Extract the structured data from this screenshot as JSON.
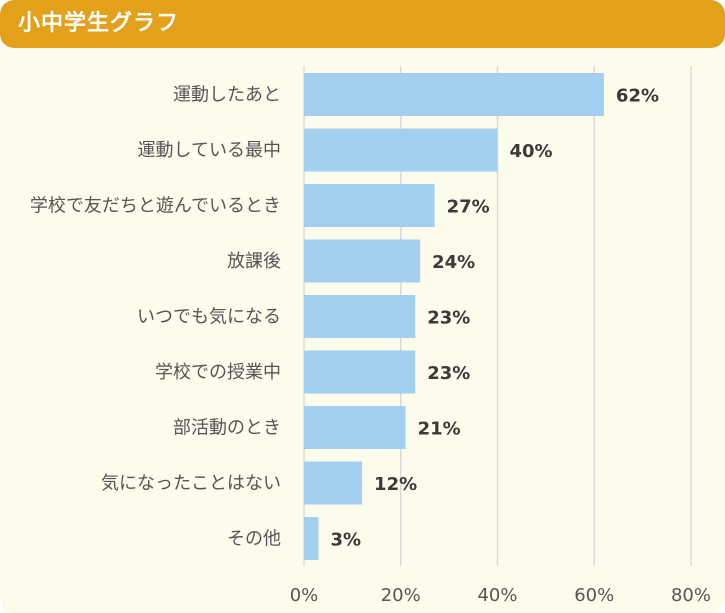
{
  "header": {
    "title": "小中学生グラフ"
  },
  "colors": {
    "header_bg": "#e3a11b",
    "card_bg": "#fdfbeb",
    "bar": "#a3d0f1",
    "gridline": "#d9d9d9"
  },
  "chart_data": {
    "type": "bar",
    "orientation": "horizontal",
    "categories": [
      "運動したあと",
      "運動している最中",
      "学校で友だちと遊んでいるとき",
      "放課後",
      "いつでも気になる",
      "学校での授業中",
      "部活動のとき",
      "気になったことはない",
      "その他"
    ],
    "values": [
      62,
      40,
      27,
      24,
      23,
      23,
      21,
      12,
      3
    ],
    "value_labels": [
      "62%",
      "40%",
      "27%",
      "24%",
      "23%",
      "23%",
      "21%",
      "12%",
      "3%"
    ],
    "xlim": [
      0,
      80
    ],
    "xticks": [
      0,
      20,
      40,
      60,
      80
    ],
    "xtick_labels": [
      "0%",
      "20%",
      "40%",
      "60%",
      "80%"
    ],
    "grid": true
  }
}
